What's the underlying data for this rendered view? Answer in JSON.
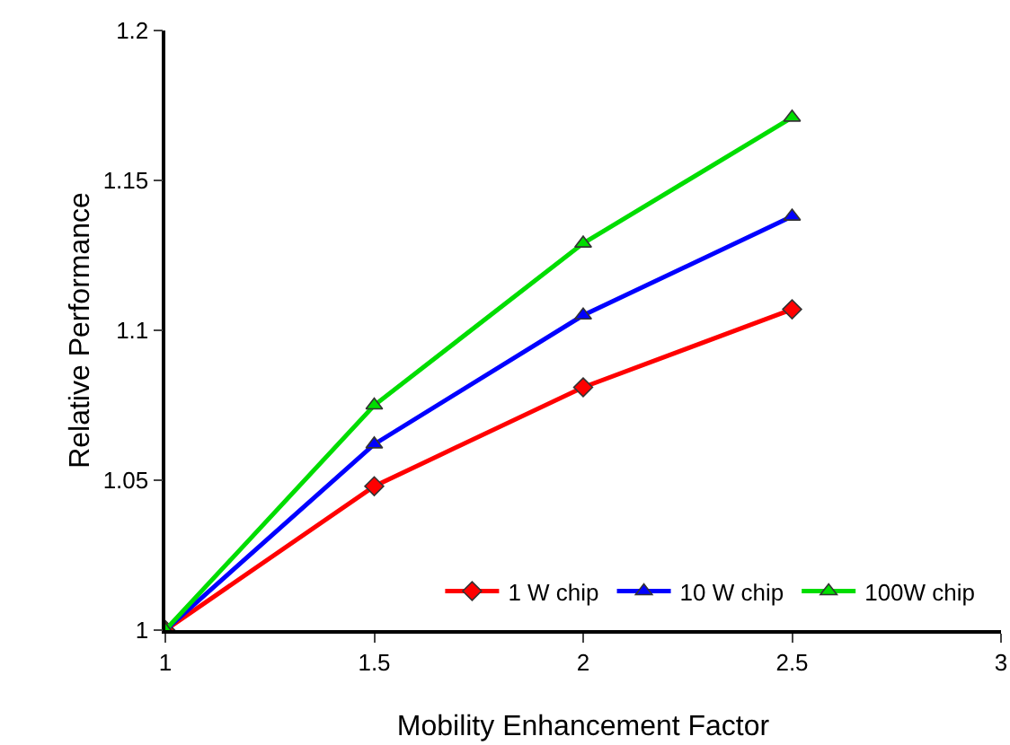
{
  "chart_data": {
    "type": "line",
    "xlabel": "Mobility Enhancement Factor",
    "ylabel": "Relative Performance",
    "x": [
      1,
      1.5,
      2,
      2.5
    ],
    "series": [
      {
        "name": "1 W chip",
        "color": "#ff0000",
        "marker": "diamond",
        "values": [
          1,
          1.048,
          1.081,
          1.107
        ]
      },
      {
        "name": "10 W chip",
        "color": "#0000ff",
        "marker": "triangle",
        "values": [
          1,
          1.062,
          1.105,
          1.138
        ]
      },
      {
        "name": "100W chip",
        "color": "#00dd00",
        "marker": "triangle",
        "values": [
          1,
          1.075,
          1.129,
          1.171
        ]
      }
    ],
    "xlim": [
      1,
      3
    ],
    "xticks": [
      1,
      1.5,
      2,
      2.5,
      3
    ],
    "ylim": [
      1,
      1.2
    ],
    "yticks": [
      1,
      1.05,
      1.1,
      1.15,
      1.2
    ],
    "grid": false,
    "legend": "bottom right",
    "line_style": "solid"
  }
}
